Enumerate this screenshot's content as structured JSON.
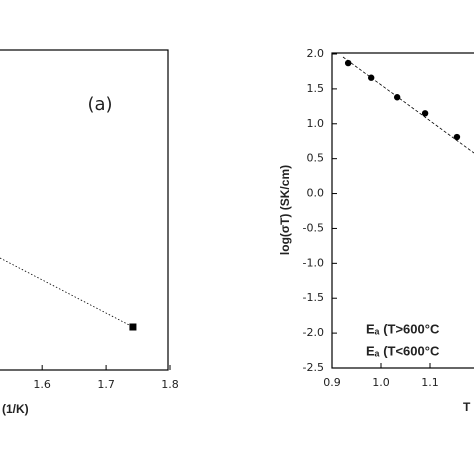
{
  "chart_data": [
    {
      "type": "scatter",
      "annotation": "(a)",
      "x_label": "(1/K)",
      "x": [
        1.742
      ],
      "xlim": [
        1.534,
        1.8
      ],
      "xticks": [
        1.6,
        1.7,
        1.8
      ],
      "color": "#000000"
    },
    {
      "type": "scatter",
      "y_label": "log(σT) (SK/cm)",
      "x_label": "T",
      "annotations": [
        "Eₐ (T>600°C",
        "Eₐ (T<600°C"
      ],
      "x": [
        0.933,
        0.98,
        1.033,
        1.09,
        1.155
      ],
      "y": [
        1.87,
        1.66,
        1.38,
        1.15,
        0.81
      ],
      "xlim": [
        0.9,
        1.2
      ],
      "ylim": [
        -2.5,
        2.0
      ],
      "xticks": [
        {
          "value": 0.9,
          "label": "0.9"
        },
        {
          "value": 1.0,
          "label": "1.0"
        },
        {
          "value": 1.1,
          "label": "1.1"
        }
      ],
      "yticks": [
        {
          "value": 2.0,
          "label": "2.0"
        },
        {
          "value": 1.5,
          "label": "1.5"
        },
        {
          "value": 1.0,
          "label": "1.0"
        },
        {
          "value": 0.5,
          "label": "0.5"
        },
        {
          "value": 0.0,
          "label": "0.0"
        },
        {
          "value": -0.5,
          "label": "-0.5"
        },
        {
          "value": -1.0,
          "label": "-1.0"
        },
        {
          "value": -1.5,
          "label": "-1.5"
        },
        {
          "value": -2.0,
          "label": "-2.0"
        },
        {
          "value": -2.5,
          "label": "-2.5"
        }
      ],
      "color": "#000000"
    }
  ]
}
